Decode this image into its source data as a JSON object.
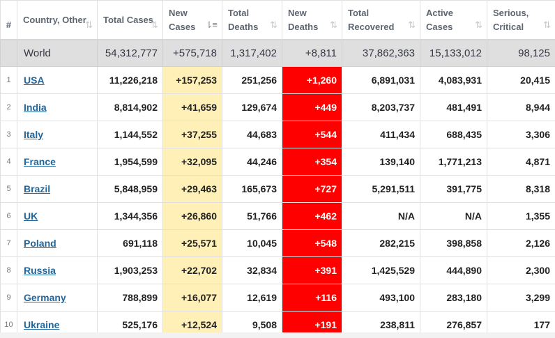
{
  "columns": [
    {
      "key": "idx",
      "label": "#",
      "sortable": false
    },
    {
      "key": "country",
      "label": "Country, Other",
      "sortable": true
    },
    {
      "key": "total_cases",
      "label": "Total Cases",
      "sortable": true
    },
    {
      "key": "new_cases",
      "label": "New Cases",
      "sortable": true,
      "sorted": "desc"
    },
    {
      "key": "total_deaths",
      "label": "Total Deaths",
      "sortable": true
    },
    {
      "key": "new_deaths",
      "label": "New Deaths",
      "sortable": true
    },
    {
      "key": "total_recovered",
      "label": "Total Recovered",
      "sortable": true
    },
    {
      "key": "active_cases",
      "label": "Active Cases",
      "sortable": true
    },
    {
      "key": "serious_critical",
      "label": "Serious, Critical",
      "sortable": true
    }
  ],
  "sort_icon": "⇅",
  "sort_icon_active": "⇂≡",
  "world": {
    "country": "World",
    "total_cases": "54,312,777",
    "new_cases": "+575,718",
    "total_deaths": "1,317,402",
    "new_deaths": "+8,811",
    "total_recovered": "37,862,363",
    "active_cases": "15,133,012",
    "serious_critical": "98,125"
  },
  "rows": [
    {
      "idx": "1",
      "country": "USA",
      "total_cases": "11,226,218",
      "new_cases": "+157,253",
      "total_deaths": "251,256",
      "new_deaths": "+1,260",
      "total_recovered": "6,891,031",
      "active_cases": "4,083,931",
      "serious_critical": "20,415"
    },
    {
      "idx": "2",
      "country": "India",
      "total_cases": "8,814,902",
      "new_cases": "+41,659",
      "total_deaths": "129,674",
      "new_deaths": "+449",
      "total_recovered": "8,203,737",
      "active_cases": "481,491",
      "serious_critical": "8,944"
    },
    {
      "idx": "3",
      "country": "Italy",
      "total_cases": "1,144,552",
      "new_cases": "+37,255",
      "total_deaths": "44,683",
      "new_deaths": "+544",
      "total_recovered": "411,434",
      "active_cases": "688,435",
      "serious_critical": "3,306"
    },
    {
      "idx": "4",
      "country": "France",
      "total_cases": "1,954,599",
      "new_cases": "+32,095",
      "total_deaths": "44,246",
      "new_deaths": "+354",
      "total_recovered": "139,140",
      "active_cases": "1,771,213",
      "serious_critical": "4,871"
    },
    {
      "idx": "5",
      "country": "Brazil",
      "total_cases": "5,848,959",
      "new_cases": "+29,463",
      "total_deaths": "165,673",
      "new_deaths": "+727",
      "total_recovered": "5,291,511",
      "active_cases": "391,775",
      "serious_critical": "8,318"
    },
    {
      "idx": "6",
      "country": "UK",
      "total_cases": "1,344,356",
      "new_cases": "+26,860",
      "total_deaths": "51,766",
      "new_deaths": "+462",
      "total_recovered": "N/A",
      "active_cases": "N/A",
      "serious_critical": "1,355"
    },
    {
      "idx": "7",
      "country": "Poland",
      "total_cases": "691,118",
      "new_cases": "+25,571",
      "total_deaths": "10,045",
      "new_deaths": "+548",
      "total_recovered": "282,215",
      "active_cases": "398,858",
      "serious_critical": "2,126"
    },
    {
      "idx": "8",
      "country": "Russia",
      "total_cases": "1,903,253",
      "new_cases": "+22,702",
      "total_deaths": "32,834",
      "new_deaths": "+391",
      "total_recovered": "1,425,529",
      "active_cases": "444,890",
      "serious_critical": "2,300"
    },
    {
      "idx": "9",
      "country": "Germany",
      "total_cases": "788,899",
      "new_cases": "+16,077",
      "total_deaths": "12,619",
      "new_deaths": "+116",
      "total_recovered": "493,100",
      "active_cases": "283,180",
      "serious_critical": "3,299"
    },
    {
      "idx": "10",
      "country": "Ukraine",
      "total_cases": "525,176",
      "new_cases": "+12,524",
      "total_deaths": "9,508",
      "new_deaths": "+191",
      "total_recovered": "238,811",
      "active_cases": "276,857",
      "serious_critical": "177"
    }
  ],
  "colors": {
    "new_cases_bg": "#fff0b8",
    "new_deaths_bg": "#ff0000",
    "world_row_bg": "#dfdfdf",
    "country_link": "#21669c"
  }
}
